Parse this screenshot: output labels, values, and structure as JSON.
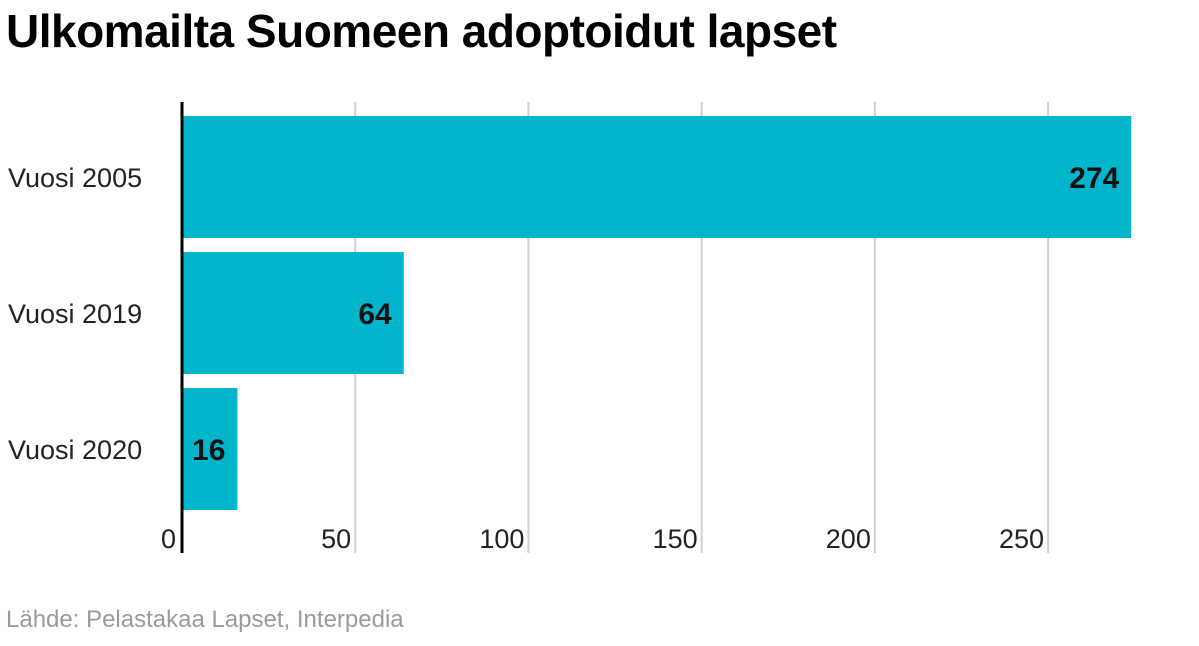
{
  "title": "Ulkomailta Suomeen adoptoidut lapset",
  "source": "Lähde: Pelastakaa Lapset, Interpedia",
  "chart_data": {
    "type": "bar",
    "orientation": "horizontal",
    "title": "Ulkomailta Suomeen adoptoidut lapset",
    "categories": [
      "Vuosi 2005",
      "Vuosi 2019",
      "Vuosi 2020"
    ],
    "values": [
      274,
      64,
      16
    ],
    "data_labels": [
      "274",
      "64",
      "16"
    ],
    "xlim": [
      0,
      280
    ],
    "xticks": [
      0,
      50,
      100,
      150,
      200,
      250
    ],
    "xtick_labels": [
      "0",
      "50",
      "100",
      "150",
      "200",
      "250"
    ],
    "grid": "vertical",
    "bar_color": "#00b5cc",
    "grid_color": "#d0d0d0",
    "axis_color": "#000000"
  }
}
